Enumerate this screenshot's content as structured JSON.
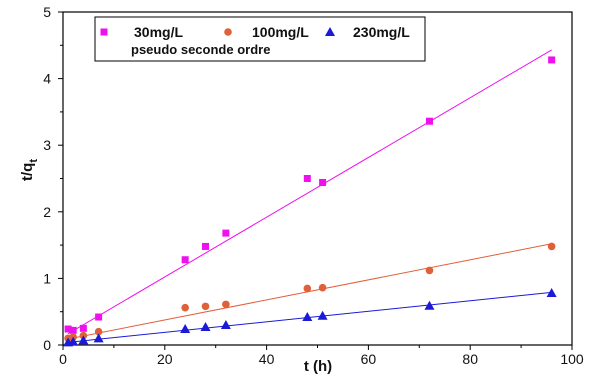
{
  "chart_data": {
    "type": "scatter",
    "xlabel": "t (h)",
    "ylabel_main": "t/q",
    "ylabel_sub": "t",
    "xlim": [
      0,
      100
    ],
    "ylim": [
      0,
      5
    ],
    "xticks": [
      0,
      20,
      40,
      60,
      80,
      100
    ],
    "yticks": [
      0,
      1,
      2,
      3,
      4,
      5
    ],
    "grid": false,
    "legend_position": "top-left",
    "series": [
      {
        "name": "30mg/L",
        "marker": "square",
        "color": "#ee11ee",
        "x": [
          1,
          2,
          4,
          7,
          24,
          28,
          32,
          48,
          51,
          72,
          96
        ],
        "y": [
          0.24,
          0.22,
          0.25,
          0.42,
          1.28,
          1.48,
          1.68,
          2.5,
          2.44,
          3.36,
          4.28
        ],
        "fit": {
          "color": "#ee11ee",
          "x": [
            1,
            96
          ],
          "y": [
            0.17,
            4.43
          ]
        }
      },
      {
        "name": "100mg/L",
        "marker": "circle",
        "color": "#e0603a",
        "x": [
          1,
          2,
          4,
          7,
          24,
          28,
          32,
          48,
          51,
          72,
          96
        ],
        "y": [
          0.1,
          0.12,
          0.14,
          0.2,
          0.56,
          0.58,
          0.61,
          0.85,
          0.86,
          1.12,
          1.48
        ],
        "fit": {
          "color": "#e0603a",
          "x": [
            1,
            96
          ],
          "y": [
            0.09,
            1.52
          ]
        }
      },
      {
        "name": "230mg/L",
        "marker": "triangle",
        "color": "#1a1ad8",
        "x": [
          1,
          2,
          4,
          7,
          24,
          28,
          32,
          48,
          51,
          72,
          96
        ],
        "y": [
          0.04,
          0.05,
          0.07,
          0.1,
          0.24,
          0.27,
          0.3,
          0.42,
          0.44,
          0.59,
          0.78
        ],
        "fit": {
          "color": "#1a1ad8",
          "x": [
            1,
            96
          ],
          "y": [
            0.04,
            0.79
          ]
        }
      }
    ],
    "fit_legend_label": "pseudo seconde ordre"
  }
}
